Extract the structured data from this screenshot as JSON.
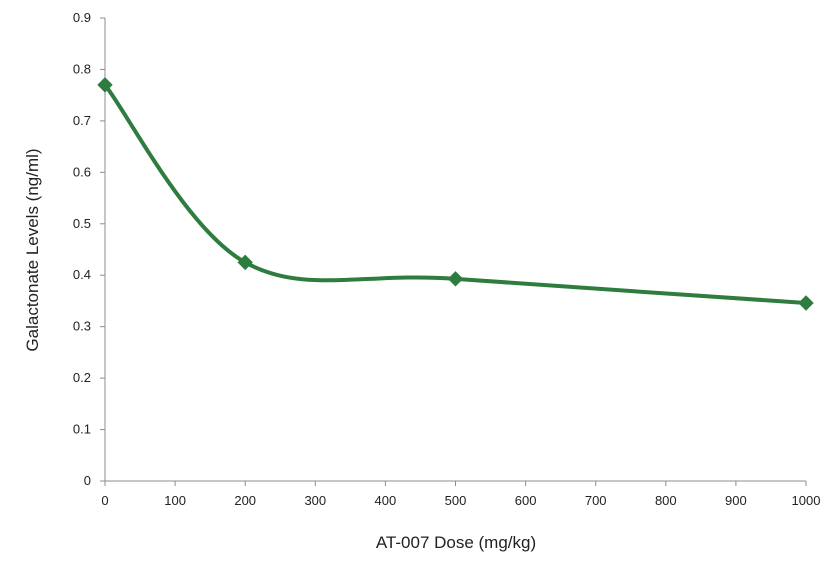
{
  "chart_data": {
    "type": "line",
    "title": "",
    "xlabel": "AT-007 Dose (mg/kg)",
    "ylabel": "Galactonate Levels (ng/ml)",
    "xlim": [
      0,
      1000
    ],
    "ylim": [
      0,
      0.9
    ],
    "xticks": [
      0,
      100,
      200,
      300,
      400,
      500,
      600,
      700,
      800,
      900,
      1000
    ],
    "yticks": [
      0,
      0.1,
      0.2,
      0.3,
      0.4,
      0.5,
      0.6,
      0.7,
      0.8,
      0.9
    ],
    "xtick_labels": [
      "0",
      "100",
      "200",
      "300",
      "400",
      "500",
      "600",
      "700",
      "800",
      "900",
      "1000"
    ],
    "ytick_labels": [
      "0",
      "0.1",
      "0.2",
      "0.3",
      "0.4",
      "0.5",
      "0.6",
      "0.7",
      "0.8",
      "0.9"
    ],
    "grid": false,
    "smoothed": true,
    "marker": "diamond",
    "color": "#2e7d3f",
    "series": [
      {
        "x": [
          0,
          200,
          500,
          1000
        ],
        "values": [
          0.77,
          0.425,
          0.393,
          0.346
        ]
      }
    ]
  }
}
